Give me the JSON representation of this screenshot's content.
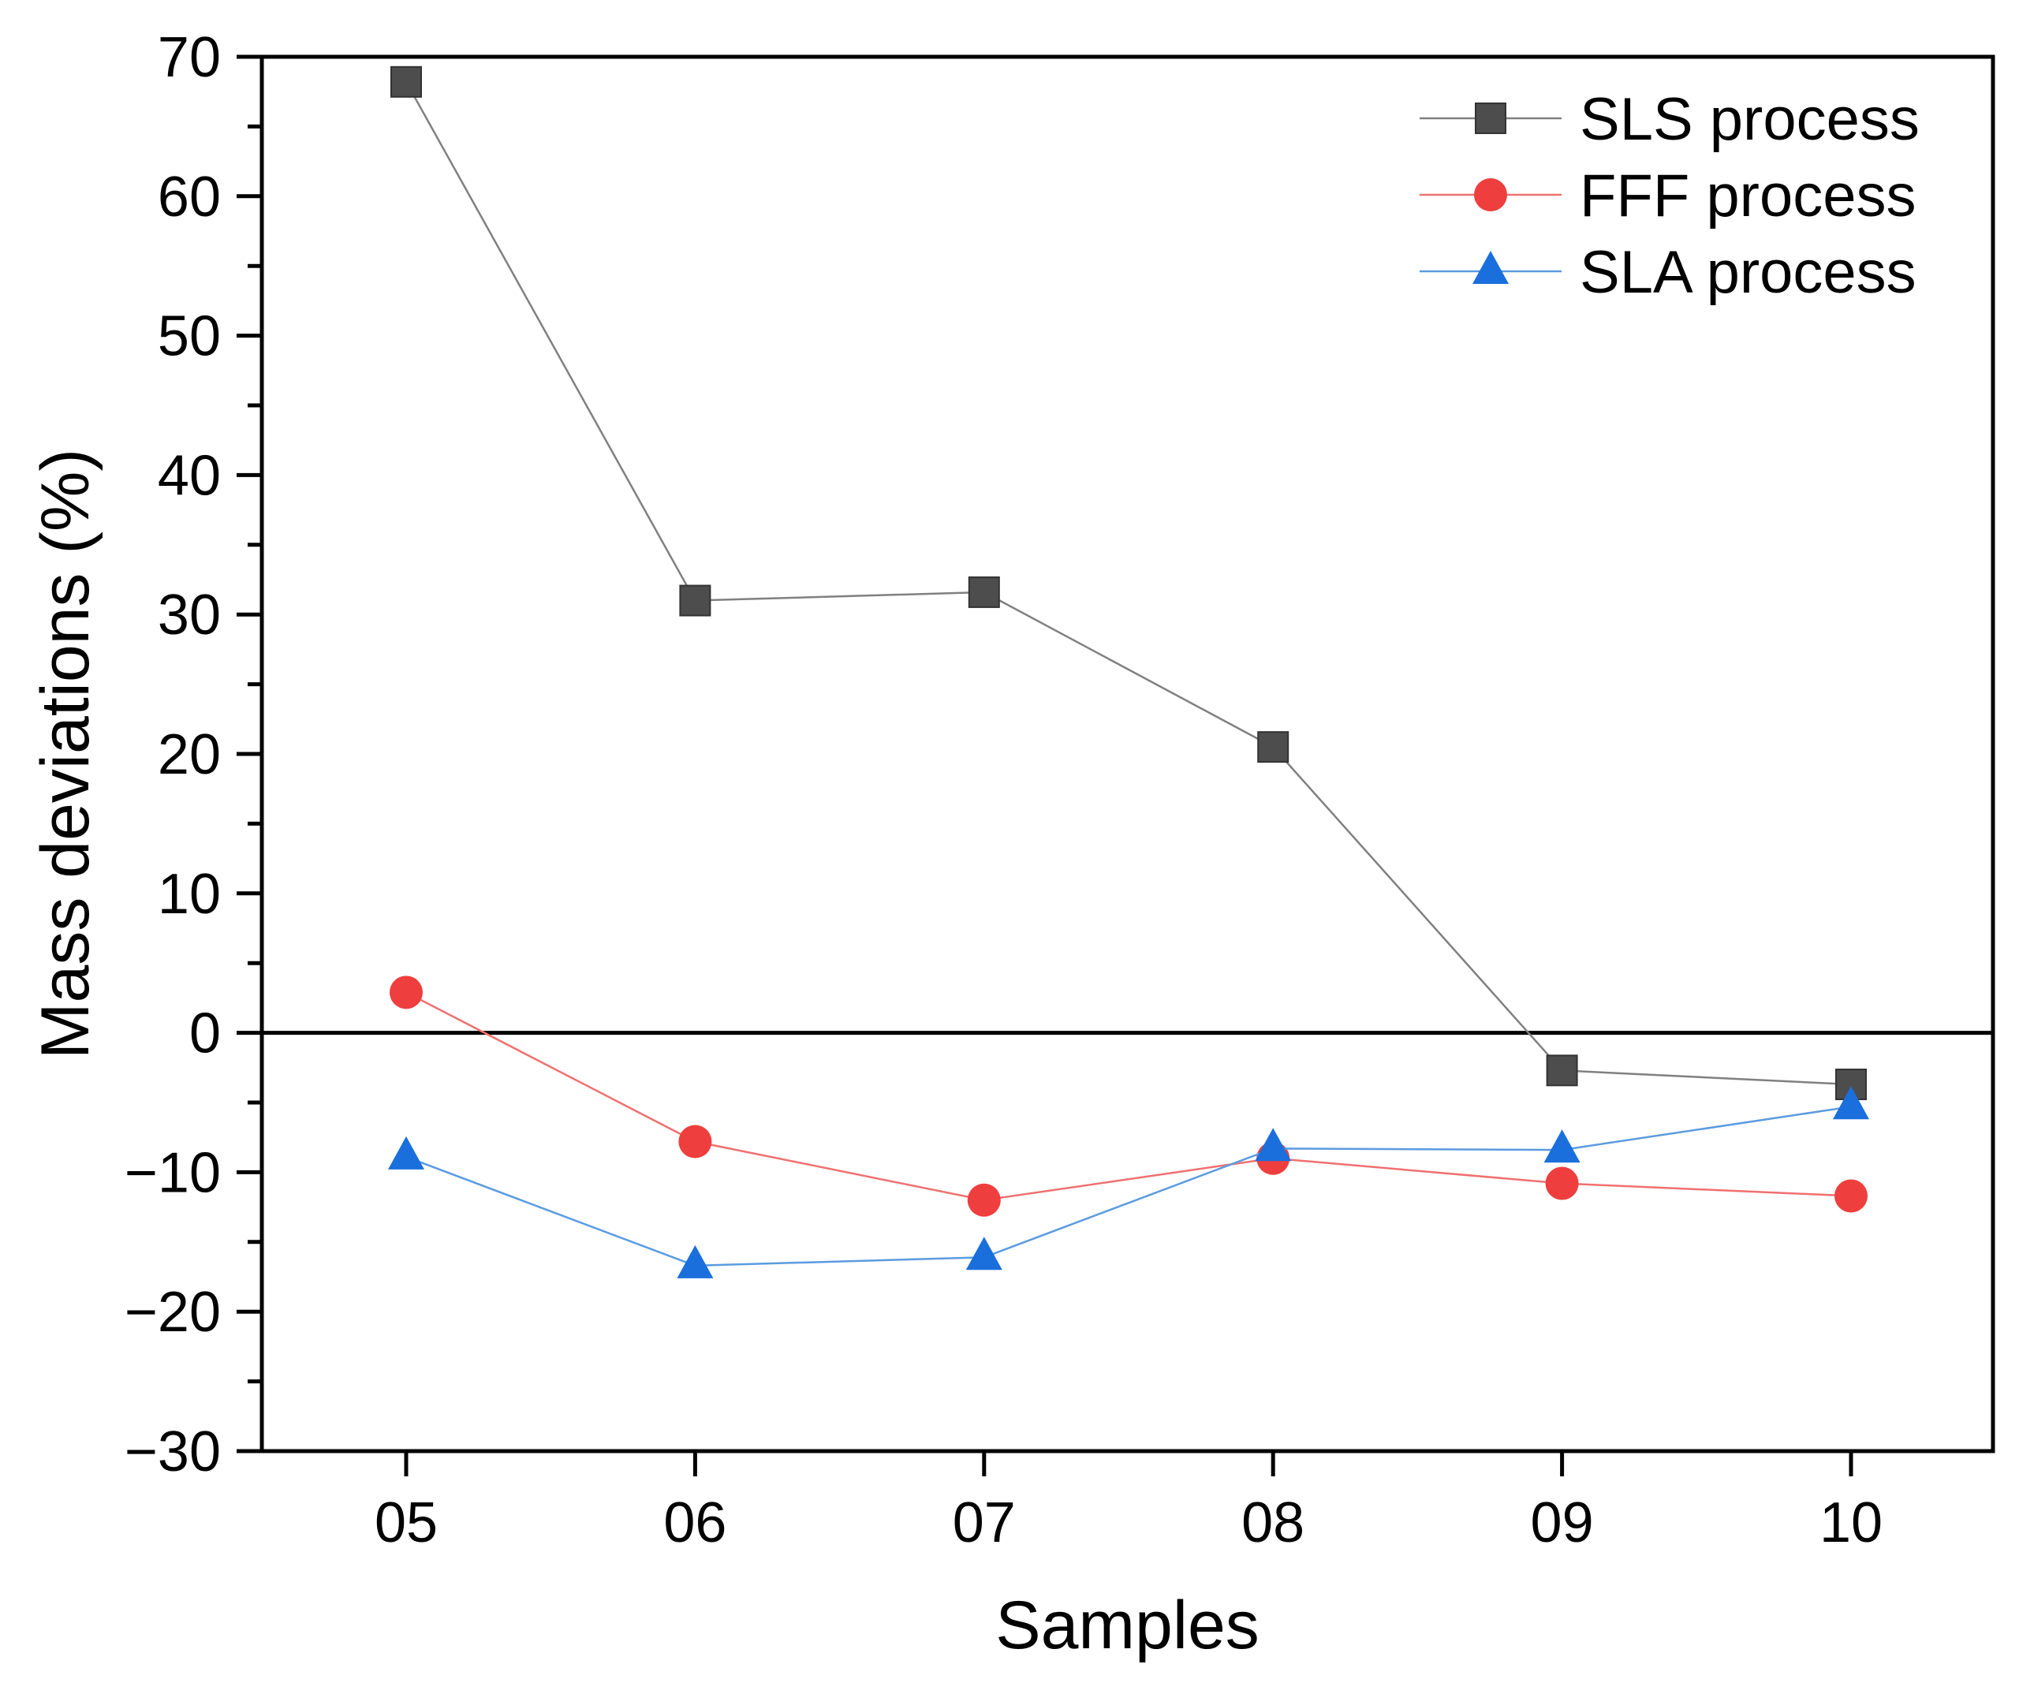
{
  "chart_data": {
    "type": "line",
    "title": "",
    "xlabel": "Samples",
    "ylabel": "Mass deviations (%)",
    "categories": [
      "05",
      "06",
      "07",
      "08",
      "09",
      "10"
    ],
    "ylim": [
      -30,
      70
    ],
    "yticks": [
      70,
      60,
      50,
      40,
      30,
      20,
      10,
      0,
      -10,
      -20,
      -30
    ],
    "ytick_labels": [
      "70",
      "60",
      "50",
      "40",
      "30",
      "20",
      "10",
      "0",
      "−10",
      "−20",
      "−30"
    ],
    "zero_line": true,
    "grid": false,
    "legend_position": "top-right",
    "series": [
      {
        "name": "SLS process",
        "marker": "square",
        "line_color": "#808080",
        "marker_color": "#4d4d4d",
        "values": [
          68.2,
          31.0,
          31.6,
          20.5,
          -2.7,
          -3.7
        ]
      },
      {
        "name": "FFF process",
        "marker": "circle",
        "line_color": "#f07070",
        "marker_color": "#ee3e3e",
        "values": [
          2.9,
          -7.8,
          -12.0,
          -9.0,
          -10.8,
          -11.7
        ]
      },
      {
        "name": "SLA process",
        "marker": "triangle",
        "line_color": "#5b9be0",
        "marker_color": "#1a6fdc",
        "values": [
          -8.9,
          -16.7,
          -16.1,
          -8.3,
          -8.4,
          -5.3
        ]
      }
    ]
  }
}
